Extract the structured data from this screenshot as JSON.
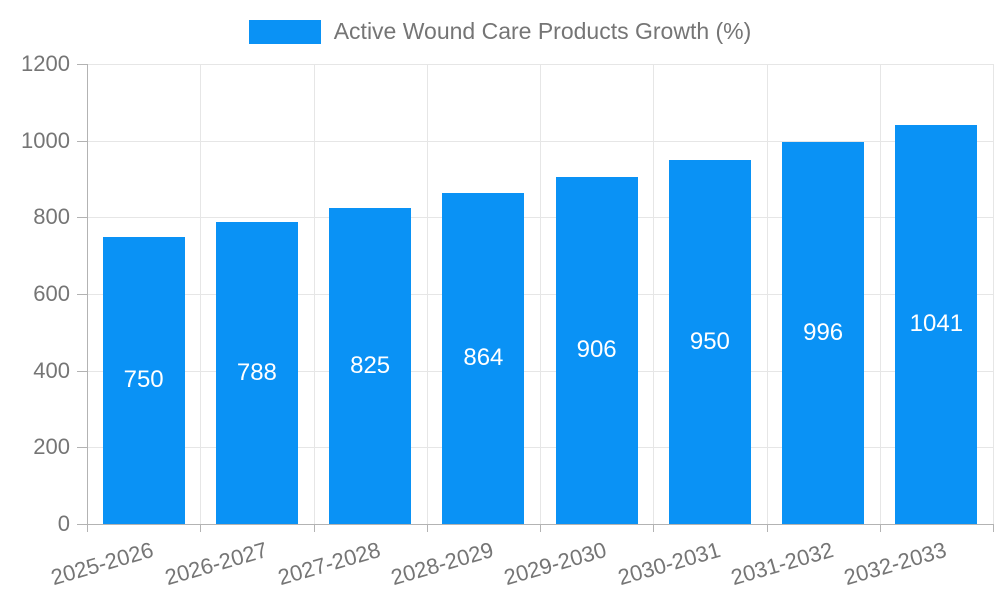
{
  "chart_data": {
    "type": "bar",
    "title": "Active Wound Care Products Growth (%)",
    "legend": {
      "position": "top",
      "label": "Active Wound Care Products Growth (%)"
    },
    "categories": [
      "2025-2026",
      "2026-2027",
      "2027-2028",
      "2028-2029",
      "2029-2030",
      "2030-2031",
      "2031-2032",
      "2032-2033"
    ],
    "values": [
      750,
      788,
      825,
      864,
      906,
      950,
      996,
      1041
    ],
    "xlabel": "",
    "ylabel": "",
    "ylim": [
      0,
      1200
    ],
    "yticks": [
      0,
      200,
      400,
      600,
      800,
      1000,
      1200
    ],
    "grid": true,
    "colors": {
      "bar": "#0a92f5",
      "gridline": "#e6e6e6",
      "axis": "#b3b3b3",
      "tick_text": "#757575",
      "value_label_text": "#ffffff",
      "background": "#ffffff"
    }
  }
}
